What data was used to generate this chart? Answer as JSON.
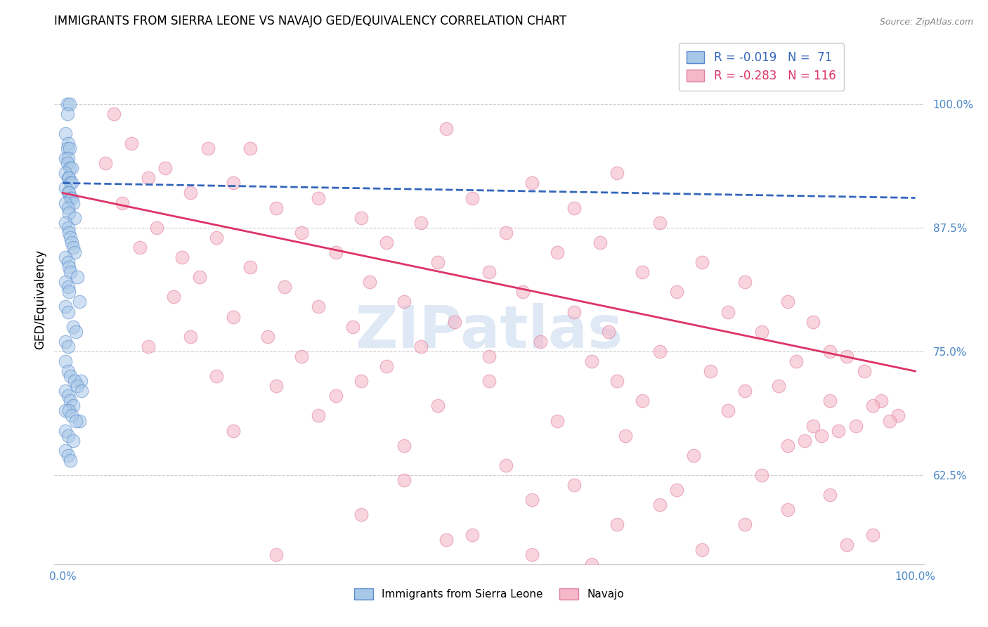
{
  "title": "IMMIGRANTS FROM SIERRA LEONE VS NAVAJO GED/EQUIVALENCY CORRELATION CHART",
  "source_text": "Source: ZipAtlas.com",
  "ylabel": "GED/Equivalency",
  "xticklabel_left": "0.0%",
  "xticklabel_right": "100.0%",
  "ytick_labels": [
    "100.0%",
    "87.5%",
    "75.0%",
    "62.5%"
  ],
  "ytick_values": [
    1.0,
    0.875,
    0.75,
    0.625
  ],
  "xlim": [
    -0.01,
    1.01
  ],
  "ylim": [
    0.535,
    1.07
  ],
  "legend_r_blue": "R = -0.019",
  "legend_n_blue": "N =  71",
  "legend_r_pink": "R = -0.283",
  "legend_n_pink": "N = 116",
  "watermark": "ZIPatlas",
  "blue_color": "#a8c8e8",
  "blue_edge_color": "#5588cc",
  "pink_color": "#f4b8c8",
  "pink_edge_color": "#e080a0",
  "blue_line_color": "#3366bb",
  "pink_line_color": "#dd3366",
  "background_color": "#ffffff",
  "grid_color": "#cccccc",
  "blue_trendline_x": [
    0.0,
    1.0
  ],
  "blue_trendline_y": [
    0.92,
    0.905
  ],
  "pink_trendline_x": [
    0.0,
    1.0
  ],
  "pink_trendline_y": [
    0.91,
    0.73
  ],
  "blue_x": [
    0.005,
    0.008,
    0.005,
    0.003,
    0.006,
    0.005,
    0.008,
    0.003,
    0.006,
    0.005,
    0.008,
    0.01,
    0.003,
    0.006,
    0.007,
    0.009,
    0.01,
    0.003,
    0.006,
    0.007,
    0.009,
    0.01,
    0.012,
    0.003,
    0.006,
    0.007,
    0.014,
    0.003,
    0.006,
    0.007,
    0.009,
    0.01,
    0.012,
    0.014,
    0.003,
    0.006,
    0.007,
    0.009,
    0.017,
    0.003,
    0.006,
    0.007,
    0.019,
    0.003,
    0.006,
    0.012,
    0.015,
    0.003,
    0.006,
    0.003,
    0.006,
    0.009,
    0.021,
    0.003,
    0.006,
    0.009,
    0.012,
    0.003,
    0.019,
    0.003,
    0.006,
    0.012,
    0.003,
    0.006,
    0.009,
    0.014,
    0.017,
    0.022,
    0.007,
    0.01,
    0.015
  ],
  "blue_y": [
    1.0,
    1.0,
    0.99,
    0.97,
    0.96,
    0.955,
    0.955,
    0.945,
    0.945,
    0.94,
    0.935,
    0.935,
    0.93,
    0.925,
    0.925,
    0.92,
    0.92,
    0.915,
    0.91,
    0.91,
    0.905,
    0.905,
    0.9,
    0.9,
    0.895,
    0.89,
    0.885,
    0.88,
    0.875,
    0.87,
    0.865,
    0.86,
    0.855,
    0.85,
    0.845,
    0.84,
    0.835,
    0.83,
    0.825,
    0.82,
    0.815,
    0.81,
    0.8,
    0.795,
    0.79,
    0.775,
    0.77,
    0.76,
    0.755,
    0.74,
    0.73,
    0.725,
    0.72,
    0.71,
    0.705,
    0.7,
    0.695,
    0.69,
    0.68,
    0.67,
    0.665,
    0.66,
    0.65,
    0.645,
    0.64,
    0.72,
    0.715,
    0.71,
    0.69,
    0.685,
    0.68
  ],
  "pink_x": [
    0.06,
    0.45,
    0.08,
    0.17,
    0.22,
    0.05,
    0.12,
    0.65,
    0.1,
    0.2,
    0.55,
    0.15,
    0.3,
    0.48,
    0.07,
    0.25,
    0.6,
    0.35,
    0.42,
    0.7,
    0.11,
    0.28,
    0.52,
    0.18,
    0.38,
    0.63,
    0.09,
    0.32,
    0.58,
    0.14,
    0.44,
    0.75,
    0.22,
    0.5,
    0.68,
    0.16,
    0.36,
    0.8,
    0.26,
    0.54,
    0.72,
    0.13,
    0.4,
    0.85,
    0.3,
    0.6,
    0.78,
    0.2,
    0.46,
    0.88,
    0.34,
    0.64,
    0.82,
    0.24,
    0.56,
    0.9,
    0.42,
    0.7,
    0.92,
    0.28,
    0.62,
    0.86,
    0.38,
    0.76,
    0.94,
    0.18,
    0.5,
    0.84,
    0.32,
    0.68,
    0.96,
    0.44,
    0.78,
    0.3,
    0.58,
    0.88,
    0.2,
    0.66,
    0.4,
    0.74,
    0.52,
    0.82,
    0.6,
    0.9,
    0.7,
    0.35,
    0.8,
    0.48,
    0.92,
    0.25,
    0.62,
    0.4,
    0.72,
    0.55,
    0.85,
    0.65,
    0.95,
    0.45,
    0.75,
    0.55,
    0.15,
    0.1,
    0.5,
    0.35,
    0.25,
    0.65,
    0.8,
    0.9,
    0.95,
    0.98,
    0.97,
    0.93,
    0.91,
    0.89,
    0.87,
    0.85
  ],
  "pink_y": [
    0.99,
    0.975,
    0.96,
    0.955,
    0.955,
    0.94,
    0.935,
    0.93,
    0.925,
    0.92,
    0.92,
    0.91,
    0.905,
    0.905,
    0.9,
    0.895,
    0.895,
    0.885,
    0.88,
    0.88,
    0.875,
    0.87,
    0.87,
    0.865,
    0.86,
    0.86,
    0.855,
    0.85,
    0.85,
    0.845,
    0.84,
    0.84,
    0.835,
    0.83,
    0.83,
    0.825,
    0.82,
    0.82,
    0.815,
    0.81,
    0.81,
    0.805,
    0.8,
    0.8,
    0.795,
    0.79,
    0.79,
    0.785,
    0.78,
    0.78,
    0.775,
    0.77,
    0.77,
    0.765,
    0.76,
    0.75,
    0.755,
    0.75,
    0.745,
    0.745,
    0.74,
    0.74,
    0.735,
    0.73,
    0.73,
    0.725,
    0.72,
    0.715,
    0.705,
    0.7,
    0.7,
    0.695,
    0.69,
    0.685,
    0.68,
    0.675,
    0.67,
    0.665,
    0.655,
    0.645,
    0.635,
    0.625,
    0.615,
    0.605,
    0.595,
    0.585,
    0.575,
    0.565,
    0.555,
    0.545,
    0.535,
    0.62,
    0.61,
    0.6,
    0.59,
    0.575,
    0.565,
    0.56,
    0.55,
    0.545,
    0.765,
    0.755,
    0.745,
    0.72,
    0.715,
    0.72,
    0.71,
    0.7,
    0.695,
    0.685,
    0.68,
    0.675,
    0.67,
    0.665,
    0.66,
    0.655
  ]
}
